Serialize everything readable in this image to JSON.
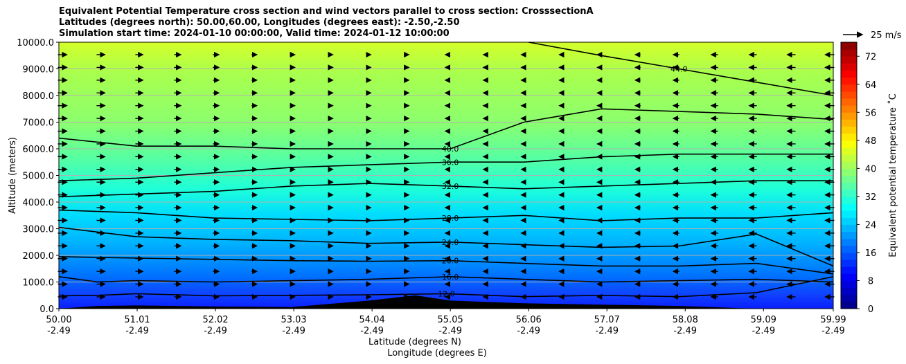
{
  "title_lines": [
    "Equivalent Potential Temperature cross section and wind vectors parallel to cross section: CrosssectionA",
    "Latitudes (degrees north): 50.00,60.00, Longitudes (degrees east): -2.50,-2.50",
    "Simulation start time: 2024-01-10 00:00:00, Valid time: 2024-01-12 10:00:00"
  ],
  "wind_key_label": "25 m/s",
  "chart_data": {
    "type": "heatmap",
    "ylabel": "Altitude (meters)",
    "xlabel_lines": [
      "Latitude (degrees N)",
      "Longitude (degrees E)"
    ],
    "ylim": [
      0,
      10000
    ],
    "y_ticks": [
      "0.0",
      "1000.0",
      "2000.0",
      "3000.0",
      "4000.0",
      "5000.0",
      "6000.0",
      "7000.0",
      "8000.0",
      "9000.0",
      "10000.0"
    ],
    "y_tick_values": [
      0,
      1000,
      2000,
      3000,
      4000,
      5000,
      6000,
      7000,
      8000,
      9000,
      10000
    ],
    "xlim": [
      50.0,
      59.99
    ],
    "x_ticks": [
      {
        "lat": "50.00",
        "lon": "-2.49",
        "v": 50.0
      },
      {
        "lat": "51.01",
        "lon": "-2.49",
        "v": 51.01
      },
      {
        "lat": "52.02",
        "lon": "-2.49",
        "v": 52.02
      },
      {
        "lat": "53.03",
        "lon": "-2.49",
        "v": 53.03
      },
      {
        "lat": "54.04",
        "lon": "-2.49",
        "v": 54.04
      },
      {
        "lat": "55.05",
        "lon": "-2.49",
        "v": 55.05
      },
      {
        "lat": "56.06",
        "lon": "-2.49",
        "v": 56.06
      },
      {
        "lat": "57.07",
        "lon": "-2.49",
        "v": 57.07
      },
      {
        "lat": "58.08",
        "lon": "-2.49",
        "v": 58.08
      },
      {
        "lat": "59.09",
        "lon": "-2.49",
        "v": 59.09
      },
      {
        "lat": "59.99",
        "lon": "-2.49",
        "v": 59.99
      }
    ],
    "grid": "horizontal",
    "colorbar": {
      "label": "Equivalent potential temperature $^\\circ$C",
      "label_text": "Equivalent potential temperature ˚C",
      "min": 0,
      "max": 76,
      "step": 2,
      "ticks": [
        "0",
        "8",
        "16",
        "24",
        "32",
        "40",
        "48",
        "56",
        "64",
        "72"
      ],
      "tick_values": [
        0,
        8,
        16,
        24,
        32,
        40,
        48,
        56,
        64,
        72
      ],
      "colormap": "jet"
    },
    "contours": [
      {
        "level": "12.0",
        "points": [
          [
            50.0,
            480
          ],
          [
            50.5,
            500
          ],
          [
            51,
            560
          ],
          [
            52,
            480
          ],
          [
            53,
            500
          ],
          [
            54,
            520
          ],
          [
            55,
            560
          ],
          [
            56,
            450
          ],
          [
            57,
            500
          ],
          [
            58,
            450
          ],
          [
            59,
            600
          ],
          [
            59.99,
            1200
          ]
        ]
      },
      {
        "level": "16.0",
        "points": [
          [
            50.0,
            1200
          ],
          [
            50.5,
            1000
          ],
          [
            51,
            1050
          ],
          [
            52,
            1000
          ],
          [
            53,
            1050
          ],
          [
            54,
            1100
          ],
          [
            55.05,
            1200
          ],
          [
            56,
            1100
          ],
          [
            57,
            1000
          ],
          [
            58,
            1050
          ],
          [
            59,
            1100
          ],
          [
            59.99,
            1000
          ]
        ]
      },
      {
        "level": "20.0",
        "points": [
          [
            50.0,
            1950
          ],
          [
            51,
            1900
          ],
          [
            52,
            1850
          ],
          [
            53,
            1800
          ],
          [
            54,
            1780
          ],
          [
            55.05,
            1800
          ],
          [
            56,
            1700
          ],
          [
            57,
            1600
          ],
          [
            58,
            1600
          ],
          [
            59,
            1700
          ],
          [
            59.99,
            1300
          ]
        ]
      },
      {
        "level": "24.0",
        "points": [
          [
            50.0,
            3050
          ],
          [
            51,
            2700
          ],
          [
            52,
            2600
          ],
          [
            53,
            2550
          ],
          [
            54,
            2450
          ],
          [
            55.05,
            2500
          ],
          [
            56,
            2400
          ],
          [
            57,
            2300
          ],
          [
            58,
            2350
          ],
          [
            59,
            2800
          ],
          [
            59.99,
            1600
          ]
        ]
      },
      {
        "level": "28.0",
        "points": [
          [
            50.0,
            3700
          ],
          [
            51,
            3600
          ],
          [
            52,
            3400
          ],
          [
            53,
            3350
          ],
          [
            54,
            3300
          ],
          [
            55.05,
            3400
          ],
          [
            56,
            3500
          ],
          [
            57,
            3300
          ],
          [
            58,
            3400
          ],
          [
            59,
            3400
          ],
          [
            59.99,
            3600
          ]
        ]
      },
      {
        "level": "32.0",
        "points": [
          [
            50.0,
            4200
          ],
          [
            51,
            4300
          ],
          [
            52,
            4400
          ],
          [
            53,
            4600
          ],
          [
            54,
            4700
          ],
          [
            55.05,
            4600
          ],
          [
            56,
            4500
          ],
          [
            57,
            4600
          ],
          [
            58,
            4700
          ],
          [
            59,
            4800
          ],
          [
            59.99,
            4800
          ]
        ]
      },
      {
        "level": "36.0",
        "points": [
          [
            50.0,
            4800
          ],
          [
            51,
            4900
          ],
          [
            52,
            5100
          ],
          [
            53,
            5300
          ],
          [
            54,
            5400
          ],
          [
            55.05,
            5500
          ],
          [
            56,
            5500
          ],
          [
            57,
            5700
          ],
          [
            58,
            5800
          ],
          [
            59,
            5800
          ],
          [
            59.99,
            5800
          ]
        ]
      },
      {
        "level": "40.0",
        "points": [
          [
            50.0,
            6400
          ],
          [
            51,
            6100
          ],
          [
            52,
            6100
          ],
          [
            53,
            6000
          ],
          [
            54,
            6000
          ],
          [
            55.05,
            6000
          ],
          [
            56,
            7000
          ],
          [
            57,
            7500
          ],
          [
            58,
            7400
          ],
          [
            59,
            7300
          ],
          [
            59.99,
            7100
          ]
        ]
      },
      {
        "level": "44.0",
        "points": [
          [
            56.06,
            10000
          ],
          [
            57,
            9500
          ],
          [
            58,
            9000
          ],
          [
            59,
            8500
          ],
          [
            59.99,
            8000
          ]
        ]
      }
    ],
    "terrain": [
      [
        50.0,
        0
      ],
      [
        50.5,
        100
      ],
      [
        51,
        120
      ],
      [
        52,
        80
      ],
      [
        53,
        60
      ],
      [
        54,
        300
      ],
      [
        54.6,
        500
      ],
      [
        55.05,
        300
      ],
      [
        56,
        200
      ],
      [
        57,
        150
      ],
      [
        58,
        100
      ],
      [
        59,
        0
      ],
      [
        59.99,
        0
      ]
    ]
  }
}
